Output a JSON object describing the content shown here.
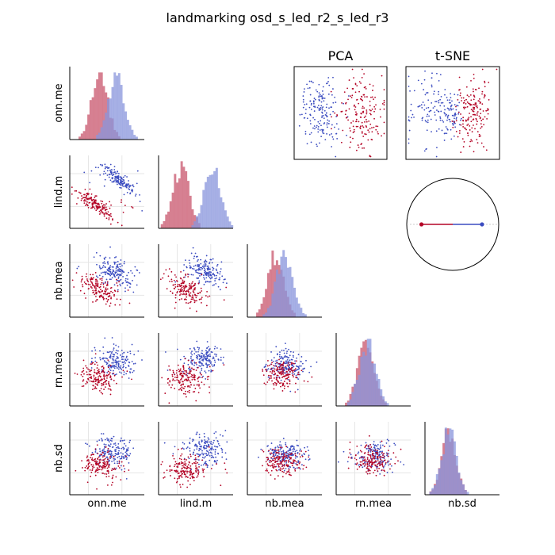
{
  "title": "landmarking osd_s_led_r2_s_led_r3",
  "chart_data": {
    "type": "scatter",
    "kind": "pair-plot matrix (lower triangle scatter, diagonal histograms) with PCA and t-SNE projections and a unit-circle inset",
    "variables": [
      "onn.me",
      "lind.m",
      "nb.mea",
      "rn.mea",
      "nb.sd"
    ],
    "classes": [
      {
        "color": "#3b4cc0",
        "hist_color": "#8a96dc"
      },
      {
        "color": "#b40426",
        "hist_color": "#cf6a7e"
      }
    ],
    "projection_titles": [
      "PCA",
      "t-SNE"
    ],
    "cells": [
      {
        "row": 1,
        "col": 0,
        "corr": 0.85,
        "sep": 1.0
      },
      {
        "row": 2,
        "col": 0,
        "corr": 0.5,
        "sep": 0.7
      },
      {
        "row": 2,
        "col": 1,
        "corr": 0.45,
        "sep": 0.8
      },
      {
        "row": 3,
        "col": 0,
        "corr": 0.1,
        "sep": 0.7
      },
      {
        "row": 3,
        "col": 1,
        "corr": 0.05,
        "sep": 0.75
      },
      {
        "row": 3,
        "col": 2,
        "corr": 0.05,
        "sep": 0.35
      },
      {
        "row": 4,
        "col": 0,
        "corr": 0.05,
        "sep": 0.55
      },
      {
        "row": 4,
        "col": 1,
        "corr": 0.05,
        "sep": 0.8
      },
      {
        "row": 4,
        "col": 2,
        "corr": 0.05,
        "sep": 0.3
      },
      {
        "row": 4,
        "col": 3,
        "corr": 0.0,
        "sep": 0.15
      }
    ],
    "diagonal_histograms": [
      {
        "var": "onn.me",
        "blue_mean": 0.62,
        "red_mean": 0.4
      },
      {
        "var": "lind.m",
        "blue_mean": 0.72,
        "red_mean": 0.3
      },
      {
        "var": "nb.mea",
        "blue_mean": 0.5,
        "red_mean": 0.38
      },
      {
        "var": "rn.mea",
        "blue_mean": 0.42,
        "red_mean": 0.4
      },
      {
        "var": "nb.sd",
        "blue_mean": 0.32,
        "red_mean": 0.32
      }
    ],
    "circle_inset": {
      "red_point": [
        -1.0,
        0.0
      ],
      "blue_point": [
        0.85,
        0.0
      ]
    },
    "grid": false,
    "legend": "none"
  }
}
